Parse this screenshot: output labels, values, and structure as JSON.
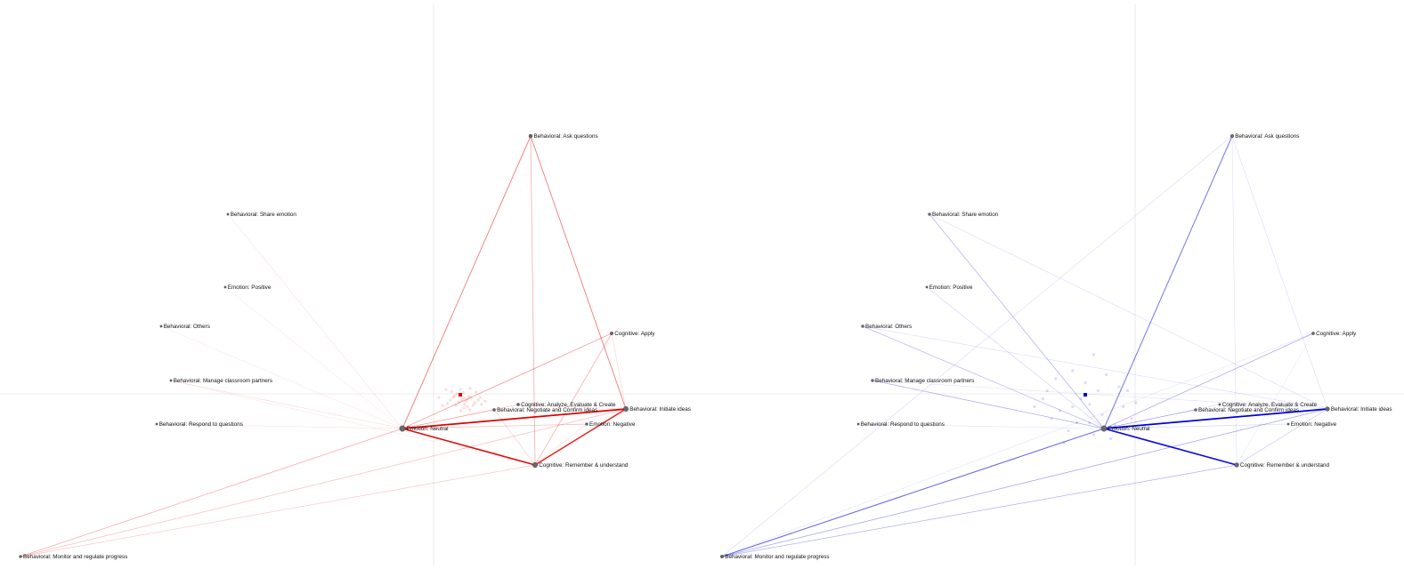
{
  "nodes": [
    {
      "id": "ask",
      "label": "Behavioral: Ask questions"
    },
    {
      "id": "share",
      "label": "Behavioral: Share emotion"
    },
    {
      "id": "positive",
      "label": "Emotion: Positive"
    },
    {
      "id": "others",
      "label": "Behavioral: Others"
    },
    {
      "id": "apply",
      "label": "Cognitive: Apply"
    },
    {
      "id": "manage",
      "label": "Behavioral: Manage classroom partners"
    },
    {
      "id": "analyze",
      "label": "Cognitive: Analyze, Evaluate & Create"
    },
    {
      "id": "negotiate",
      "label": "Behavioral: Negotiate and Confirm ideas"
    },
    {
      "id": "initiate",
      "label": "Behavioral: Initiate ideas"
    },
    {
      "id": "respond",
      "label": "Behavioral: Respond to questions"
    },
    {
      "id": "negative",
      "label": "Emotion: Negative"
    },
    {
      "id": "neutral",
      "label": "Emotion: Neutral"
    },
    {
      "id": "remember",
      "label": "Cognitive: Remember & understand"
    },
    {
      "id": "monitor",
      "label": "Behavioral: Monitor and regulate progress"
    }
  ],
  "networks": [
    {
      "name": "left",
      "color": "#e00000",
      "node_size": {
        "neutral": 3.2,
        "initiate": 2.8,
        "remember": 2.8,
        "ask": 2.0,
        "apply": 1.8,
        "negotiate": 1.6,
        "analyze": 1.6,
        "negative": 1.5,
        "monitor": 1.5
      },
      "edges": [
        [
          "neutral",
          "initiate",
          1.0
        ],
        [
          "neutral",
          "remember",
          0.95
        ],
        [
          "initiate",
          "remember",
          0.85
        ],
        [
          "neutral",
          "ask",
          0.45
        ],
        [
          "ask",
          "initiate",
          0.45
        ],
        [
          "ask",
          "remember",
          0.3
        ],
        [
          "neutral",
          "apply",
          0.35
        ],
        [
          "apply",
          "remember",
          0.3
        ],
        [
          "neutral",
          "monitor",
          0.3
        ],
        [
          "monitor",
          "initiate",
          0.22
        ],
        [
          "monitor",
          "remember",
          0.2
        ],
        [
          "neutral",
          "negative",
          0.25
        ],
        [
          "neutral",
          "negotiate",
          0.2
        ],
        [
          "neutral",
          "analyze",
          0.2
        ],
        [
          "negotiate",
          "remember",
          0.18
        ],
        [
          "analyze",
          "initiate",
          0.15
        ],
        [
          "neutral",
          "manage",
          0.12
        ],
        [
          "neutral",
          "respond",
          0.1
        ],
        [
          "neutral",
          "share",
          0.1
        ],
        [
          "neutral",
          "positive",
          0.08
        ],
        [
          "neutral",
          "others",
          0.08
        ],
        [
          "negative",
          "remember",
          0.12
        ],
        [
          "apply",
          "initiate",
          0.15
        ],
        [
          "manage",
          "remember",
          0.08
        ]
      ],
      "centroid_color": "#e00000",
      "points": [
        [
          -0.08,
          0.02
        ],
        [
          0.05,
          0.06
        ],
        [
          0.1,
          0.08
        ],
        [
          -0.05,
          -0.02
        ],
        [
          0.02,
          0.1
        ],
        [
          0.12,
          0.03
        ],
        [
          -0.1,
          0.05
        ],
        [
          0.04,
          -0.04
        ],
        [
          0.08,
          0.12
        ],
        [
          -0.02,
          0.14
        ],
        [
          0.15,
          0.06
        ],
        [
          -0.14,
          0.1
        ],
        [
          0.2,
          0.15
        ],
        [
          0.06,
          0.18
        ],
        [
          -0.06,
          0.2
        ],
        [
          0.1,
          0.22
        ],
        [
          -0.18,
          0.16
        ],
        [
          0.25,
          0.1
        ],
        [
          0.18,
          0.2
        ],
        [
          -0.12,
          -0.06
        ],
        [
          0.0,
          -0.1
        ],
        [
          0.22,
          -0.05
        ],
        [
          0.3,
          0.18
        ],
        [
          -0.25,
          0.2
        ],
        [
          0.14,
          -0.12
        ],
        [
          -0.3,
          0.05
        ],
        [
          0.28,
          0.05
        ],
        [
          0.35,
          0.12
        ],
        [
          -0.2,
          -0.1
        ],
        [
          0.05,
          0.25
        ],
        [
          0.13,
          0.28
        ],
        [
          0.01,
          0.3
        ]
      ]
    },
    {
      "name": "right",
      "color": "#0000dd",
      "node_size": {
        "neutral": 3.2,
        "initiate": 2.4,
        "remember": 2.4,
        "ask": 1.8,
        "apply": 1.6,
        "monitor": 1.8,
        "share": 1.5,
        "others": 1.5,
        "manage": 1.5,
        "negotiate": 1.5
      },
      "edges": [
        [
          "neutral",
          "initiate",
          1.0
        ],
        [
          "neutral",
          "remember",
          0.95
        ],
        [
          "neutral",
          "ask",
          0.5
        ],
        [
          "neutral",
          "monitor",
          0.55
        ],
        [
          "monitor",
          "initiate",
          0.3
        ],
        [
          "monitor",
          "remember",
          0.28
        ],
        [
          "neutral",
          "apply",
          0.3
        ],
        [
          "neutral",
          "share",
          0.28
        ],
        [
          "neutral",
          "others",
          0.25
        ],
        [
          "neutral",
          "manage",
          0.28
        ],
        [
          "neutral",
          "negotiate",
          0.22
        ],
        [
          "neutral",
          "analyze",
          0.18
        ],
        [
          "neutral",
          "negative",
          0.15
        ],
        [
          "initiate",
          "remember",
          0.2
        ],
        [
          "ask",
          "initiate",
          0.12
        ],
        [
          "ask",
          "remember",
          0.1
        ],
        [
          "share",
          "initiate",
          0.12
        ],
        [
          "others",
          "initiate",
          0.12
        ],
        [
          "manage",
          "initiate",
          0.1
        ],
        [
          "neutral",
          "positive",
          0.15
        ],
        [
          "monitor",
          "ask",
          0.12
        ],
        [
          "monitor",
          "apply",
          0.1
        ],
        [
          "respond",
          "neutral",
          0.1
        ],
        [
          "apply",
          "remember",
          0.08
        ]
      ],
      "centroid_color": "#0000dd",
      "points": [
        [
          -0.4,
          0.3
        ],
        [
          -0.3,
          0.2
        ],
        [
          -0.2,
          0.45
        ],
        [
          -0.1,
          0.35
        ],
        [
          0.1,
          0.5
        ],
        [
          0.3,
          0.55
        ],
        [
          0.45,
          0.15
        ],
        [
          0.55,
          0.3
        ],
        [
          0.2,
          0.25
        ],
        [
          -0.05,
          0.05
        ],
        [
          0.05,
          0.12
        ],
        [
          0.0,
          -0.15
        ],
        [
          -0.15,
          -0.3
        ],
        [
          -0.35,
          -0.2
        ],
        [
          0.4,
          -0.1
        ],
        [
          0.6,
          0.1
        ],
        [
          0.25,
          -0.25
        ],
        [
          -0.5,
          0.05
        ],
        [
          -0.45,
          -0.05
        ],
        [
          0.15,
          -0.05
        ],
        [
          0.35,
          0.38
        ],
        [
          -0.25,
          0.6
        ],
        [
          0.7,
          0.4
        ],
        [
          -0.6,
          0.15
        ],
        [
          0.1,
          -0.5
        ],
        [
          0.5,
          -0.05
        ],
        [
          -0.15,
          0.15
        ],
        [
          0.05,
          0.35
        ]
      ]
    }
  ]
}
